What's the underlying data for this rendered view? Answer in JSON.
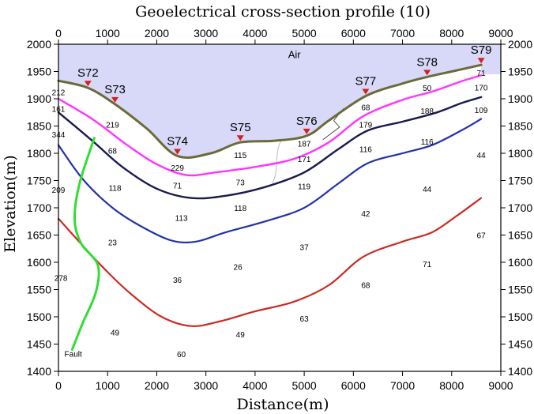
{
  "chart_data": {
    "type": "line",
    "title": "Geoelectrical cross-section profile (10)",
    "xlabel": "Distance(m)",
    "ylabel": "Elevation(m)",
    "xlim": [
      0,
      9000
    ],
    "ylim": [
      1400,
      2000
    ],
    "xticks": [
      0,
      1000,
      2000,
      3000,
      4000,
      5000,
      6000,
      7000,
      8000,
      9000
    ],
    "yticks": [
      1400,
      1450,
      1500,
      1550,
      1600,
      1650,
      1700,
      1750,
      1800,
      1850,
      1900,
      1950,
      2000
    ],
    "grid": false,
    "air_label": "Air",
    "fault_label": "Fault",
    "colors": {
      "air": "#d8d8f8",
      "surface": "#6b6b3a",
      "layer1": "#ff33ff",
      "layer2": "#1a1a4e",
      "layer3": "#2233aa",
      "layer4": "#cc2a22",
      "fault": "#33dd33",
      "station": "#d42020"
    },
    "stations": [
      {
        "name": "S72",
        "x": 600
      },
      {
        "name": "S73",
        "x": 1150
      },
      {
        "name": "S74",
        "x": 2420
      },
      {
        "name": "S75",
        "x": 3700
      },
      {
        "name": "S76",
        "x": 5050
      },
      {
        "name": "S77",
        "x": 6250
      },
      {
        "name": "S78",
        "x": 7500
      },
      {
        "name": "S79",
        "x": 8600
      }
    ],
    "series": [
      {
        "key": "surface",
        "x": [
          0,
          600,
          1150,
          1800,
          2420,
          3100,
          3700,
          4400,
          5050,
          5500,
          6250,
          7000,
          7500,
          8000,
          8600
        ],
        "y": [
          1933,
          1920,
          1890,
          1845,
          1795,
          1800,
          1820,
          1823,
          1832,
          1860,
          1905,
          1928,
          1940,
          1950,
          1962
        ]
      },
      {
        "key": "layer1",
        "x": [
          0,
          700,
          1400,
          2000,
          2600,
          3200,
          4000,
          4800,
          5500,
          6200,
          7000,
          7600,
          8200,
          8600
        ],
        "y": [
          1900,
          1862,
          1815,
          1780,
          1760,
          1765,
          1775,
          1790,
          1820,
          1868,
          1898,
          1913,
          1932,
          1943
        ]
      },
      {
        "key": "layer2",
        "x": [
          0,
          700,
          1300,
          2000,
          2700,
          3400,
          4200,
          5000,
          5700,
          6300,
          7000,
          7700,
          8200,
          8600
        ],
        "y": [
          1875,
          1822,
          1775,
          1735,
          1718,
          1722,
          1738,
          1765,
          1808,
          1842,
          1858,
          1875,
          1892,
          1903
        ]
      },
      {
        "key": "layer3",
        "x": [
          0,
          500,
          1100,
          1700,
          2300,
          2800,
          3400,
          4200,
          5000,
          5700,
          6300,
          7000,
          7600,
          8200,
          8600
        ],
        "y": [
          1815,
          1752,
          1700,
          1665,
          1640,
          1638,
          1655,
          1675,
          1700,
          1745,
          1782,
          1800,
          1815,
          1842,
          1863
        ]
      },
      {
        "key": "layer4",
        "x": [
          0,
          500,
          1000,
          1500,
          2100,
          2700,
          3300,
          4000,
          4800,
          5500,
          6200,
          7000,
          7600,
          8100,
          8600
        ],
        "y": [
          1680,
          1630,
          1582,
          1540,
          1500,
          1483,
          1492,
          1510,
          1528,
          1558,
          1610,
          1638,
          1655,
          1685,
          1718
        ]
      },
      {
        "key": "fault",
        "x": [
          730,
          430,
          330,
          460,
          800,
          760,
          500,
          280
        ],
        "y": [
          1828,
          1745,
          1680,
          1635,
          1595,
          1545,
          1490,
          1440
        ]
      }
    ],
    "resistivity_labels": [
      {
        "text": "212",
        "x": 0,
        "y": 1912
      },
      {
        "text": "161",
        "x": 0,
        "y": 1882
      },
      {
        "text": "344",
        "x": 0,
        "y": 1835
      },
      {
        "text": "209",
        "x": 0,
        "y": 1733
      },
      {
        "text": "278",
        "x": 50,
        "y": 1572
      },
      {
        "text": "219",
        "x": 1100,
        "y": 1853
      },
      {
        "text": "68",
        "x": 1100,
        "y": 1805
      },
      {
        "text": "118",
        "x": 1150,
        "y": 1737
      },
      {
        "text": "23",
        "x": 1100,
        "y": 1637
      },
      {
        "text": "49",
        "x": 1150,
        "y": 1472
      },
      {
        "text": "229",
        "x": 2420,
        "y": 1774
      },
      {
        "text": "71",
        "x": 2420,
        "y": 1741
      },
      {
        "text": "113",
        "x": 2500,
        "y": 1682
      },
      {
        "text": "36",
        "x": 2420,
        "y": 1568
      },
      {
        "text": "60",
        "x": 2500,
        "y": 1432
      },
      {
        "text": "115",
        "x": 3700,
        "y": 1797
      },
      {
        "text": "73",
        "x": 3700,
        "y": 1747
      },
      {
        "text": "118",
        "x": 3700,
        "y": 1700
      },
      {
        "text": "26",
        "x": 3650,
        "y": 1592
      },
      {
        "text": "49",
        "x": 3700,
        "y": 1468
      },
      {
        "text": "187",
        "x": 5000,
        "y": 1818
      },
      {
        "text": "171",
        "x": 5000,
        "y": 1790
      },
      {
        "text": "119",
        "x": 5000,
        "y": 1740
      },
      {
        "text": "37",
        "x": 5000,
        "y": 1628
      },
      {
        "text": "63",
        "x": 5000,
        "y": 1497
      },
      {
        "text": "68",
        "x": 6250,
        "y": 1885
      },
      {
        "text": "179",
        "x": 6250,
        "y": 1853
      },
      {
        "text": "116",
        "x": 6250,
        "y": 1808
      },
      {
        "text": "42",
        "x": 6250,
        "y": 1690
      },
      {
        "text": "68",
        "x": 6250,
        "y": 1559
      },
      {
        "text": "50",
        "x": 7500,
        "y": 1920
      },
      {
        "text": "188",
        "x": 7500,
        "y": 1878
      },
      {
        "text": "116",
        "x": 7500,
        "y": 1822
      },
      {
        "text": "44",
        "x": 7500,
        "y": 1735
      },
      {
        "text": "71",
        "x": 7500,
        "y": 1597
      },
      {
        "text": "71",
        "x": 8600,
        "y": 1948
      },
      {
        "text": "170",
        "x": 8600,
        "y": 1921
      },
      {
        "text": "109",
        "x": 8600,
        "y": 1880
      },
      {
        "text": "44",
        "x": 8600,
        "y": 1797
      },
      {
        "text": "67",
        "x": 8600,
        "y": 1650
      }
    ]
  }
}
